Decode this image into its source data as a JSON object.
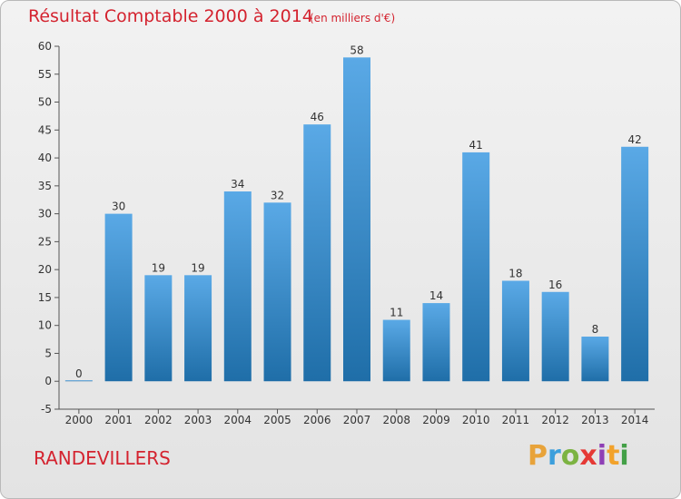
{
  "title": "Résultat Comptable 2000 à 2014",
  "subtitle": "(en milliers d'€)",
  "location": "RANDEVILLERS",
  "brand": {
    "letters": [
      "P",
      "r",
      "o",
      "x",
      "i",
      "t",
      "i"
    ]
  },
  "colors": {
    "title": "#d4232f",
    "bar_top": "#5aa9e6",
    "bar_bottom": "#1f6ea8",
    "gridline": "#c8c8c8"
  },
  "chart_data": {
    "type": "bar",
    "title": "Résultat Comptable 2000 à 2014",
    "subtitle": "(en milliers d'€)",
    "xlabel": "",
    "ylabel": "",
    "categories": [
      "2000",
      "2001",
      "2002",
      "2003",
      "2004",
      "2005",
      "2006",
      "2007",
      "2008",
      "2009",
      "2010",
      "2011",
      "2012",
      "2013",
      "2014"
    ],
    "values": [
      0,
      30,
      19,
      19,
      34,
      32,
      46,
      58,
      11,
      14,
      41,
      18,
      16,
      8,
      42
    ],
    "ylim": [
      -5,
      60
    ],
    "yticks": [
      -5,
      0,
      5,
      10,
      15,
      20,
      25,
      30,
      35,
      40,
      45,
      50,
      55,
      60
    ],
    "grid": false,
    "data_labels": true
  }
}
